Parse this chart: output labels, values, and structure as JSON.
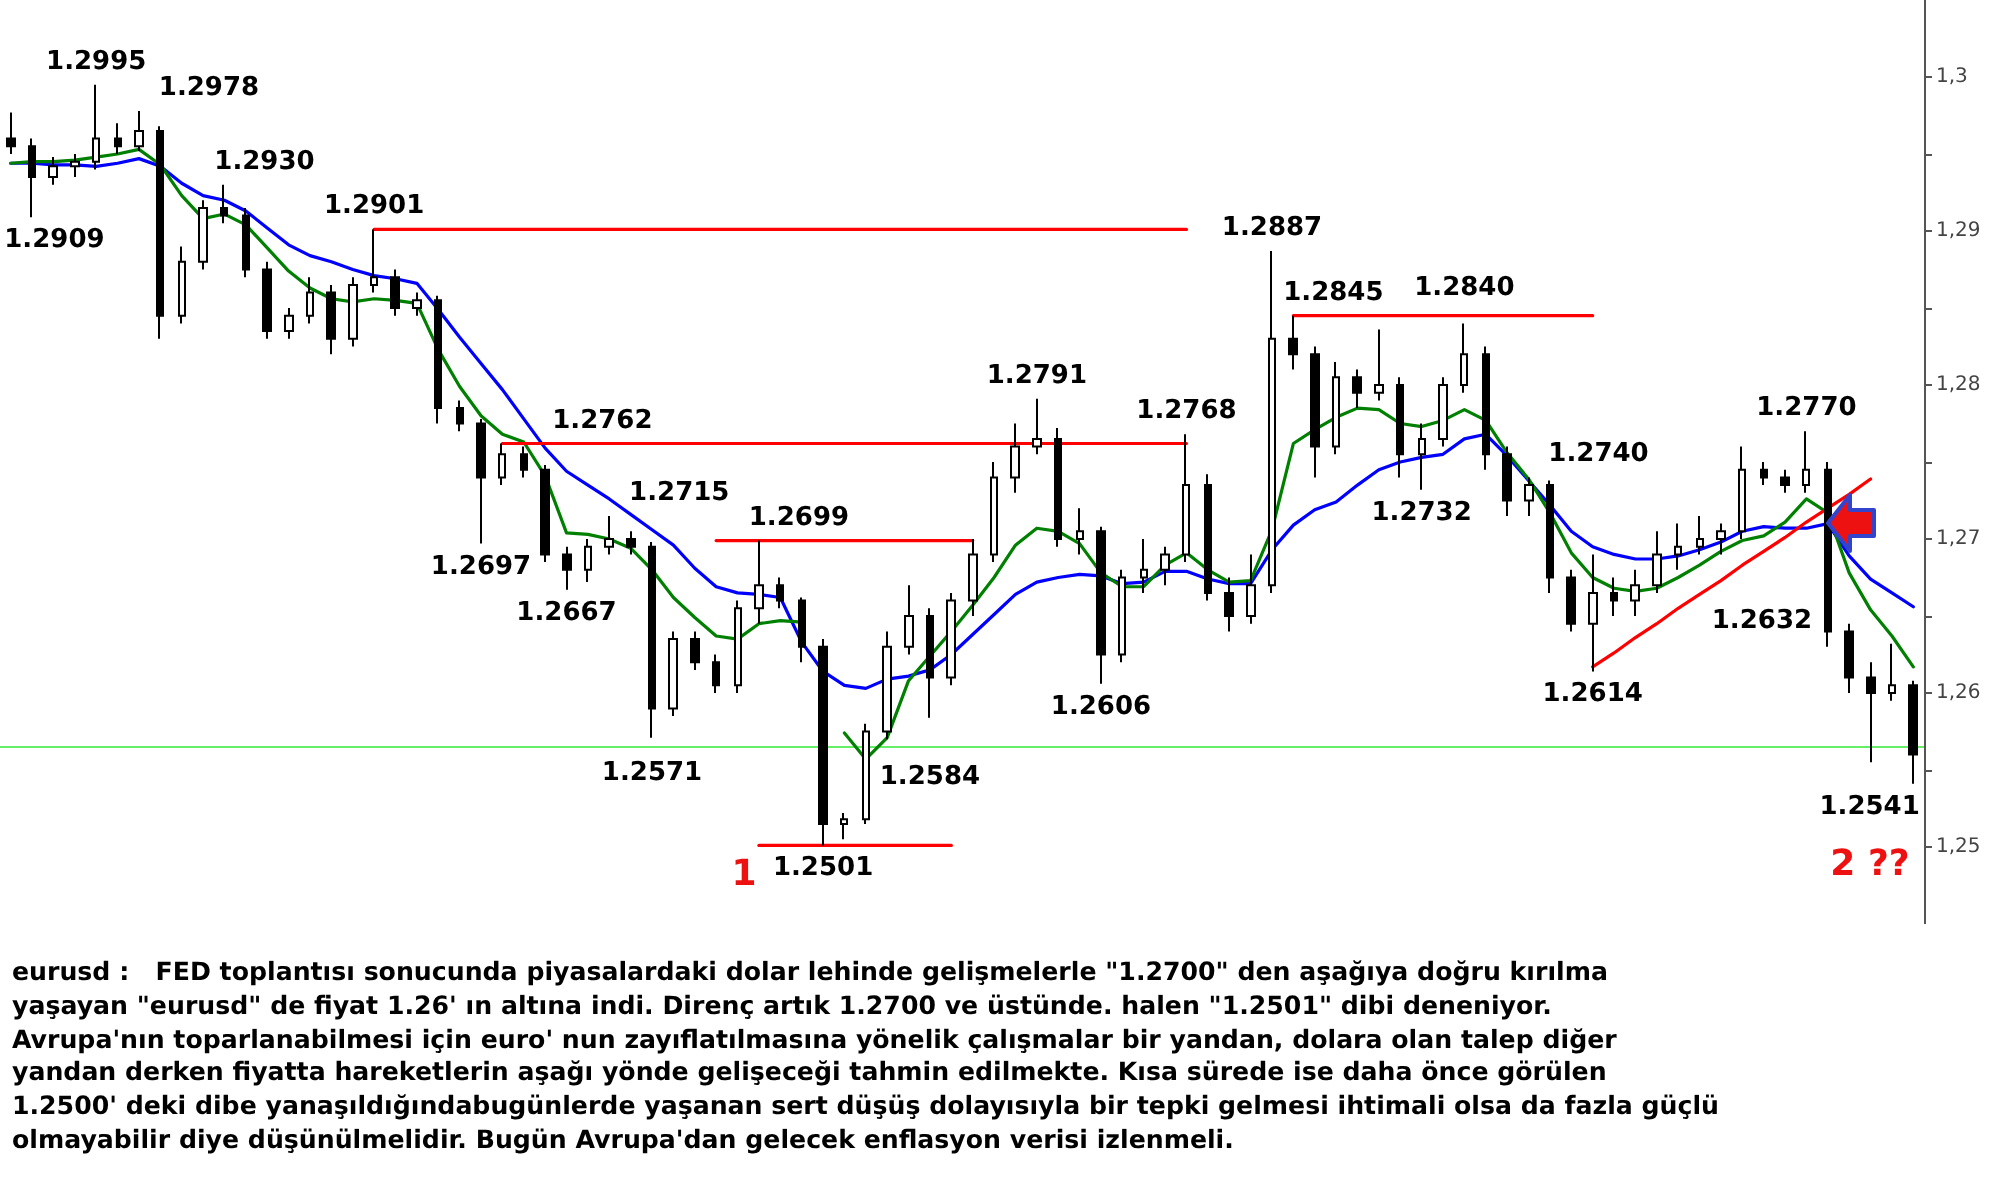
{
  "chart_data": {
    "type": "candlestick",
    "categories": [
      null,
      null,
      null,
      null,
      null,
      null,
      null,
      null,
      null,
      null,
      null,
      null,
      null,
      null,
      null,
      null,
      null,
      null,
      null,
      null,
      null,
      null,
      null,
      null,
      null,
      null,
      null,
      null,
      null,
      null,
      null,
      null,
      null,
      null,
      null,
      null,
      null,
      null,
      null,
      null,
      null,
      null,
      null,
      null,
      null,
      null,
      null,
      null,
      null,
      null,
      null,
      null,
      null,
      null,
      null,
      null,
      null,
      null,
      null,
      null,
      null,
      null,
      null,
      null,
      null,
      null,
      null,
      null,
      null,
      null,
      null,
      null,
      null,
      null,
      null,
      null,
      null,
      null,
      null,
      null,
      null,
      null,
      null,
      null,
      null,
      null,
      null,
      null,
      null,
      null
    ],
    "ohlc": [
      [
        1.296,
        1.2977,
        1.295,
        1.2955
      ],
      [
        1.2955,
        1.296,
        1.2909,
        1.2935
      ],
      [
        1.2935,
        1.2948,
        1.293,
        1.2942
      ],
      [
        1.2942,
        1.295,
        1.2935,
        1.2945
      ],
      [
        1.2945,
        1.2995,
        1.294,
        1.296
      ],
      [
        1.296,
        1.297,
        1.295,
        1.2955
      ],
      [
        1.2955,
        1.2978,
        1.2952,
        1.2965
      ],
      [
        1.2965,
        1.2968,
        1.283,
        1.2845
      ],
      [
        1.2845,
        1.289,
        1.284,
        1.288
      ],
      [
        1.288,
        1.292,
        1.2875,
        1.2915
      ],
      [
        1.2915,
        1.293,
        1.2905,
        1.291
      ],
      [
        1.291,
        1.2915,
        1.287,
        1.2875
      ],
      [
        1.2875,
        1.288,
        1.283,
        1.2835
      ],
      [
        1.2835,
        1.285,
        1.283,
        1.2845
      ],
      [
        1.2845,
        1.287,
        1.284,
        1.286
      ],
      [
        1.286,
        1.2865,
        1.282,
        1.283
      ],
      [
        1.283,
        1.287,
        1.2825,
        1.2865
      ],
      [
        1.2865,
        1.2901,
        1.286,
        1.287
      ],
      [
        1.287,
        1.2875,
        1.2845,
        1.285
      ],
      [
        1.285,
        1.286,
        1.2845,
        1.2855
      ],
      [
        1.2855,
        1.2858,
        1.2775,
        1.2785
      ],
      [
        1.2785,
        1.279,
        1.277,
        1.2775
      ],
      [
        1.2775,
        1.2778,
        1.2697,
        1.274
      ],
      [
        1.274,
        1.2762,
        1.2735,
        1.2755
      ],
      [
        1.2755,
        1.276,
        1.274,
        1.2745
      ],
      [
        1.2745,
        1.2748,
        1.2685,
        1.269
      ],
      [
        1.269,
        1.2695,
        1.2667,
        1.268
      ],
      [
        1.268,
        1.27,
        1.2672,
        1.2695
      ],
      [
        1.2695,
        1.2715,
        1.269,
        1.27
      ],
      [
        1.27,
        1.2705,
        1.269,
        1.2695
      ],
      [
        1.2695,
        1.2698,
        1.2571,
        1.259
      ],
      [
        1.259,
        1.264,
        1.2585,
        1.2635
      ],
      [
        1.2635,
        1.264,
        1.2615,
        1.262
      ],
      [
        1.262,
        1.2625,
        1.26,
        1.2605
      ],
      [
        1.2605,
        1.266,
        1.26,
        1.2655
      ],
      [
        1.2655,
        1.2699,
        1.2645,
        1.267
      ],
      [
        1.267,
        1.2675,
        1.2655,
        1.266
      ],
      [
        1.266,
        1.2662,
        1.262,
        1.263
      ],
      [
        1.263,
        1.2635,
        1.2501,
        1.2515
      ],
      [
        1.2515,
        1.2522,
        1.2505,
        1.2518
      ],
      [
        1.2518,
        1.258,
        1.2515,
        1.2575
      ],
      [
        1.2575,
        1.264,
        1.257,
        1.263
      ],
      [
        1.263,
        1.267,
        1.2625,
        1.265
      ],
      [
        1.265,
        1.2655,
        1.2584,
        1.261
      ],
      [
        1.261,
        1.2665,
        1.2605,
        1.266
      ],
      [
        1.266,
        1.27,
        1.265,
        1.269
      ],
      [
        1.269,
        1.275,
        1.2685,
        1.274
      ],
      [
        1.274,
        1.2775,
        1.273,
        1.276
      ],
      [
        1.276,
        1.2791,
        1.2755,
        1.2765
      ],
      [
        1.2765,
        1.2772,
        1.2695,
        1.27
      ],
      [
        1.27,
        1.272,
        1.269,
        1.2705
      ],
      [
        1.2705,
        1.2708,
        1.2606,
        1.2625
      ],
      [
        1.2625,
        1.268,
        1.262,
        1.2675
      ],
      [
        1.2675,
        1.27,
        1.2665,
        1.268
      ],
      [
        1.268,
        1.2695,
        1.267,
        1.269
      ],
      [
        1.269,
        1.2768,
        1.2685,
        1.2735
      ],
      [
        1.2735,
        1.2742,
        1.266,
        1.2665
      ],
      [
        1.2665,
        1.2675,
        1.264,
        1.265
      ],
      [
        1.265,
        1.269,
        1.2645,
        1.267
      ],
      [
        1.267,
        1.2887,
        1.2665,
        1.283
      ],
      [
        1.283,
        1.2845,
        1.281,
        1.282
      ],
      [
        1.282,
        1.2825,
        1.274,
        1.276
      ],
      [
        1.276,
        1.2815,
        1.2755,
        1.2805
      ],
      [
        1.2805,
        1.281,
        1.2785,
        1.2795
      ],
      [
        1.2795,
        1.2836,
        1.279,
        1.28
      ],
      [
        1.28,
        1.2805,
        1.274,
        1.2755
      ],
      [
        1.2755,
        1.2775,
        1.2732,
        1.2765
      ],
      [
        1.2765,
        1.2805,
        1.276,
        1.28
      ],
      [
        1.28,
        1.284,
        1.2795,
        1.282
      ],
      [
        1.282,
        1.2825,
        1.2745,
        1.2755
      ],
      [
        1.2755,
        1.276,
        1.2715,
        1.2725
      ],
      [
        1.2725,
        1.274,
        1.2715,
        1.2735
      ],
      [
        1.2735,
        1.2738,
        1.2665,
        1.2675
      ],
      [
        1.2675,
        1.268,
        1.264,
        1.2645
      ],
      [
        1.2645,
        1.269,
        1.2614,
        1.2665
      ],
      [
        1.2665,
        1.2675,
        1.265,
        1.266
      ],
      [
        1.266,
        1.268,
        1.265,
        1.267
      ],
      [
        1.267,
        1.2705,
        1.2665,
        1.269
      ],
      [
        1.269,
        1.271,
        1.268,
        1.2695
      ],
      [
        1.2695,
        1.2715,
        1.269,
        1.27
      ],
      [
        1.27,
        1.271,
        1.269,
        1.2705
      ],
      [
        1.2705,
        1.276,
        1.27,
        1.2745
      ],
      [
        1.2745,
        1.275,
        1.2735,
        1.274
      ],
      [
        1.274,
        1.2745,
        1.273,
        1.2735
      ],
      [
        1.2735,
        1.277,
        1.273,
        1.2745
      ],
      [
        1.2745,
        1.275,
        1.263,
        1.264
      ],
      [
        1.264,
        1.2645,
        1.26,
        1.261
      ],
      [
        1.261,
        1.262,
        1.2555,
        1.26
      ],
      [
        1.26,
        1.2632,
        1.2595,
        1.2605
      ],
      [
        1.2605,
        1.2608,
        1.2541,
        1.256
      ]
    ],
    "color": "#000000",
    "value_labels": [
      null,
      "1.2909",
      null,
      null,
      "1.2995",
      null,
      "1.2978",
      null,
      null,
      null,
      "1.2930",
      null,
      null,
      null,
      null,
      null,
      null,
      "1.2901",
      null,
      null,
      null,
      null,
      "1.2697",
      "1.2762",
      null,
      null,
      "1.2667",
      null,
      "1.2715",
      null,
      "1.2571",
      null,
      null,
      null,
      null,
      "1.2699",
      null,
      null,
      "1.2501",
      null,
      null,
      null,
      null,
      "1.2584",
      null,
      null,
      null,
      null,
      "1.2791",
      null,
      null,
      "1.2606",
      null,
      null,
      null,
      "1.2768",
      null,
      null,
      null,
      "1.2887",
      "1.2845",
      null,
      null,
      null,
      null,
      null,
      "1.2732",
      null,
      "1.2840",
      null,
      null,
      "1.2740",
      null,
      null,
      "1.2614",
      null,
      null,
      null,
      null,
      null,
      null,
      null,
      null,
      null,
      "1.2770",
      null,
      null,
      null,
      "1.2632",
      "1.2541"
    ],
    "series": [
      {
        "type": "line",
        "color": "#0000ff",
        "values": [
          1.2944,
          1.2944,
          1.2943,
          1.2943,
          1.2942,
          1.2944,
          1.2947,
          1.2942,
          1.2931,
          1.2923,
          1.292,
          1.2913,
          1.2902,
          1.2891,
          1.2884,
          1.288,
          1.2875,
          1.2871,
          1.2869,
          1.2866,
          1.2849,
          1.2831,
          1.2814,
          1.2797,
          1.2778,
          1.2759,
          1.2744,
          1.2735,
          1.2726,
          1.2716,
          1.2706,
          1.2696,
          1.2681,
          1.2669,
          1.2665,
          1.2664,
          1.2662,
          1.2633,
          1.2614,
          1.2605,
          1.2603,
          1.2609,
          1.2611,
          1.2615,
          1.2625,
          1.2638,
          1.2651,
          1.2664,
          1.2672,
          1.2675,
          1.2677,
          1.2676,
          1.2671,
          1.2672,
          1.2679,
          1.2679,
          1.2674,
          1.2671,
          1.2671,
          1.2693,
          1.2709,
          1.2719,
          1.2724,
          1.2735,
          1.2745,
          1.275,
          1.2753,
          1.2755,
          1.2765,
          1.2768,
          1.2754,
          1.2738,
          1.2722,
          1.2705,
          1.2695,
          1.269,
          1.2687,
          1.2687,
          1.2689,
          1.2693,
          1.2698,
          1.2705,
          1.2708,
          1.2707,
          1.2707,
          1.271,
          1.2689,
          1.2674,
          1.2665,
          1.2656
        ]
      },
      {
        "type": "line",
        "color": "#008000",
        "values": [
          1.2944,
          1.2945,
          1.2945,
          1.2946,
          1.2948,
          1.295,
          1.2953,
          1.2943,
          1.2923,
          1.2908,
          1.2911,
          1.2904,
          1.2889,
          1.2874,
          1.2863,
          1.2856,
          1.2854,
          1.2856,
          1.2855,
          1.2853,
          1.2823,
          1.2799,
          1.278,
          1.2768,
          1.2763,
          1.2741,
          1.2704,
          1.2703,
          1.27,
          1.2694,
          1.268,
          1.2662,
          1.2649,
          1.2637,
          1.2635,
          1.2645,
          1.2647,
          1.2646,
          null,
          1.2574,
          1.2557,
          1.2571,
          1.2608,
          1.2624,
          1.264,
          1.2657,
          1.2675,
          1.2696,
          1.2707,
          1.2705,
          1.2697,
          1.2678,
          1.2669,
          1.2669,
          1.2683,
          1.2691,
          1.268,
          1.2672,
          1.2673,
          1.2706,
          1.2762,
          1.2771,
          1.2779,
          1.2785,
          1.2784,
          1.2775,
          1.2773,
          1.2777,
          1.2784,
          1.2777,
          1.2756,
          1.2739,
          1.2717,
          1.2691,
          1.2675,
          1.2668,
          1.2666,
          1.2668,
          1.2675,
          1.2683,
          1.2692,
          1.2699,
          1.2702,
          1.2711,
          1.2726,
          1.2717,
          1.2678,
          1.2654,
          1.2637,
          1.2617
        ]
      },
      {
        "type": "line",
        "color": "#ff0000",
        "values": [
          null,
          null,
          null,
          null,
          null,
          null,
          null,
          null,
          null,
          null,
          null,
          null,
          null,
          null,
          null,
          null,
          null,
          1.2901,
          1.2901,
          1.2901,
          1.2901,
          1.2901,
          1.2901,
          1.2901,
          1.2901,
          1.2901,
          1.2901,
          1.2901,
          1.2901,
          1.2901,
          1.2901,
          1.2901,
          1.2901,
          1.2901,
          1.2901,
          1.2901,
          1.2901,
          1.2901,
          1.2901,
          1.2901,
          1.2901,
          1.2901,
          1.2901,
          1.2901,
          1.2901,
          1.2901,
          1.2901,
          1.2901,
          1.2901,
          1.2901,
          1.2901,
          1.2901,
          1.2901,
          1.2901,
          1.2901,
          1.2901,
          null,
          null,
          null,
          null,
          null,
          null,
          null,
          null,
          null,
          null,
          null,
          null,
          null,
          null,
          null,
          null,
          null,
          null,
          null,
          null,
          null,
          null,
          null,
          null,
          null,
          null,
          null,
          null,
          null,
          null,
          null,
          null,
          null,
          null
        ]
      },
      {
        "type": "line",
        "color": "#ff0000",
        "values": [
          null,
          null,
          null,
          null,
          null,
          null,
          null,
          null,
          null,
          null,
          null,
          null,
          null,
          null,
          null,
          null,
          null,
          null,
          null,
          null,
          null,
          null,
          null,
          1.2762,
          1.2762,
          1.2762,
          1.2762,
          1.2762,
          1.2762,
          1.2762,
          1.2762,
          1.2762,
          1.2762,
          1.2762,
          1.2762,
          1.2762,
          1.2762,
          1.2762,
          1.2762,
          1.2762,
          1.2762,
          1.2762,
          1.2762,
          1.2762,
          1.2762,
          1.2762,
          1.2762,
          1.2762,
          1.2762,
          1.2762,
          1.2762,
          1.2762,
          1.2762,
          1.2762,
          1.2762,
          1.2762,
          null,
          null,
          null,
          null,
          null,
          null,
          null,
          null,
          null,
          null,
          null,
          null,
          null,
          null,
          null,
          null,
          null,
          null,
          null,
          null,
          null,
          null,
          null,
          null,
          null,
          null,
          null,
          null,
          null,
          null,
          null,
          null,
          null,
          null
        ]
      },
      {
        "type": "line",
        "color": "#ff0000",
        "values": [
          null,
          null,
          null,
          null,
          null,
          null,
          null,
          null,
          null,
          null,
          null,
          null,
          null,
          null,
          null,
          null,
          null,
          null,
          null,
          null,
          null,
          null,
          null,
          null,
          null,
          null,
          null,
          null,
          null,
          null,
          null,
          null,
          null,
          1.2699,
          1.2699,
          1.2699,
          1.2699,
          1.2699,
          1.2699,
          1.2699,
          1.2699,
          1.2699,
          1.2699,
          1.2699,
          1.2699,
          1.2699,
          null,
          null,
          null,
          null,
          null,
          null,
          null,
          null,
          null,
          null,
          null,
          null,
          null,
          null,
          null,
          null,
          null,
          null,
          null,
          null,
          null,
          null,
          null,
          null,
          null,
          null,
          null,
          null,
          null,
          null,
          null,
          null,
          null,
          null,
          null,
          null,
          null,
          null,
          null,
          null,
          null,
          null,
          null,
          null
        ]
      },
      {
        "type": "line",
        "color": "#ff0000",
        "values": [
          null,
          null,
          null,
          null,
          null,
          null,
          null,
          null,
          null,
          null,
          null,
          null,
          null,
          null,
          null,
          null,
          null,
          null,
          null,
          null,
          null,
          null,
          null,
          null,
          null,
          null,
          null,
          null,
          null,
          null,
          null,
          null,
          null,
          null,
          null,
          1.2501,
          1.2501,
          1.2501,
          1.2501,
          1.2501,
          1.2501,
          1.2501,
          1.2501,
          1.2501,
          1.2501,
          null,
          null,
          null,
          null,
          null,
          null,
          null,
          null,
          null,
          null,
          null,
          null,
          null,
          null,
          null,
          null,
          null,
          null,
          null,
          null,
          null,
          null,
          null,
          null,
          null,
          null,
          null,
          null,
          null,
          null,
          null,
          null,
          null,
          null,
          null,
          null,
          null,
          null,
          null,
          null,
          null,
          null,
          null,
          null,
          null
        ]
      },
      {
        "type": "line",
        "color": "#ff0000",
        "values": [
          null,
          null,
          null,
          null,
          null,
          null,
          null,
          null,
          null,
          null,
          null,
          null,
          null,
          null,
          null,
          null,
          null,
          null,
          null,
          null,
          null,
          null,
          null,
          null,
          null,
          null,
          null,
          null,
          null,
          null,
          null,
          null,
          null,
          null,
          null,
          null,
          null,
          null,
          null,
          null,
          null,
          null,
          null,
          null,
          null,
          null,
          null,
          null,
          null,
          null,
          null,
          null,
          null,
          null,
          null,
          null,
          null,
          null,
          null,
          null,
          1.2845,
          1.2845,
          1.2845,
          1.2845,
          1.2845,
          1.2845,
          1.2845,
          1.2845,
          1.2845,
          1.2845,
          1.2845,
          1.2845,
          1.2845,
          1.2845,
          1.2845,
          null,
          null,
          null,
          null,
          null,
          null,
          null,
          null,
          null,
          null,
          null,
          null,
          null,
          null,
          null
        ]
      },
      {
        "type": "line",
        "color": "#ff0000",
        "values": [
          null,
          null,
          null,
          null,
          null,
          null,
          null,
          null,
          null,
          null,
          null,
          null,
          null,
          null,
          null,
          null,
          null,
          null,
          null,
          null,
          null,
          null,
          null,
          null,
          null,
          null,
          null,
          null,
          null,
          null,
          null,
          null,
          null,
          null,
          null,
          null,
          null,
          null,
          null,
          null,
          null,
          null,
          null,
          null,
          null,
          null,
          null,
          null,
          null,
          null,
          null,
          null,
          null,
          null,
          null,
          null,
          null,
          null,
          null,
          null,
          null,
          null,
          null,
          null,
          null,
          null,
          null,
          null,
          null,
          null,
          null,
          null,
          null,
          null,
          1.2617,
          1.2626,
          1.2636,
          1.2645,
          1.2655,
          1.2664,
          1.2673,
          1.2683,
          1.2692,
          1.2701,
          1.2711,
          1.272,
          1.2729,
          1.2739,
          null,
          null
        ]
      }
    ],
    "ref_lines": [
      {
        "axis": "y",
        "value": 1.2565,
        "color": "#66ee66"
      }
    ],
    "ylim": [
      1.245,
      1.305
    ],
    "yticks": [
      {
        "value": 1.25,
        "label": "1,25"
      },
      {
        "value": 1.255,
        "label": null
      },
      {
        "value": 1.26,
        "label": "1,26"
      },
      {
        "value": 1.265,
        "label": null
      },
      {
        "value": 1.27,
        "label": "1,27"
      },
      {
        "value": 1.275,
        "label": null
      },
      {
        "value": 1.28,
        "label": "1,28"
      },
      {
        "value": 1.285,
        "label": null
      },
      {
        "value": 1.29,
        "label": "1,29"
      },
      {
        "value": 1.295,
        "label": null
      },
      {
        "value": 1.3,
        "label": "1,3"
      }
    ],
    "tick_labels": "y",
    "grid": false,
    "annotations": [
      "1",
      "2 ??",
      "eurusd :   FED toplantısı sonucunda piyasalardaki dolar lehinde gelişmelerle \"1.2700\" den aşağıya doğru kırılma\nyaşayan \"eurusd\" de fiyat 1.26' ın altına indi. Direnç artık 1.2700 ve üstünde. halen \"1.2501\" dibi deneniyor.\nAvrupa'nın toparlanabilmesi için euro' nun zayıflatılmasına yönelik çalışmalar bir yandan, dolara olan talep diğer\nyandan derken fiyatta hareketlerin aşağı yönde gelişeceği tahmin edilmekte. Kısa sürede ise daha önce görülen\n1.2500' deki dibe yanaşıldığındabugünlerde yaşanan sert düşüş dolayısıyla bir tepki gelmesi ihtimali olsa da fazla güçlü\nolmayabilir diye düşünülmelidir. Bugün Avrupa'dan gelecek enflasyon verisi izlenmeli."
    ]
  }
}
